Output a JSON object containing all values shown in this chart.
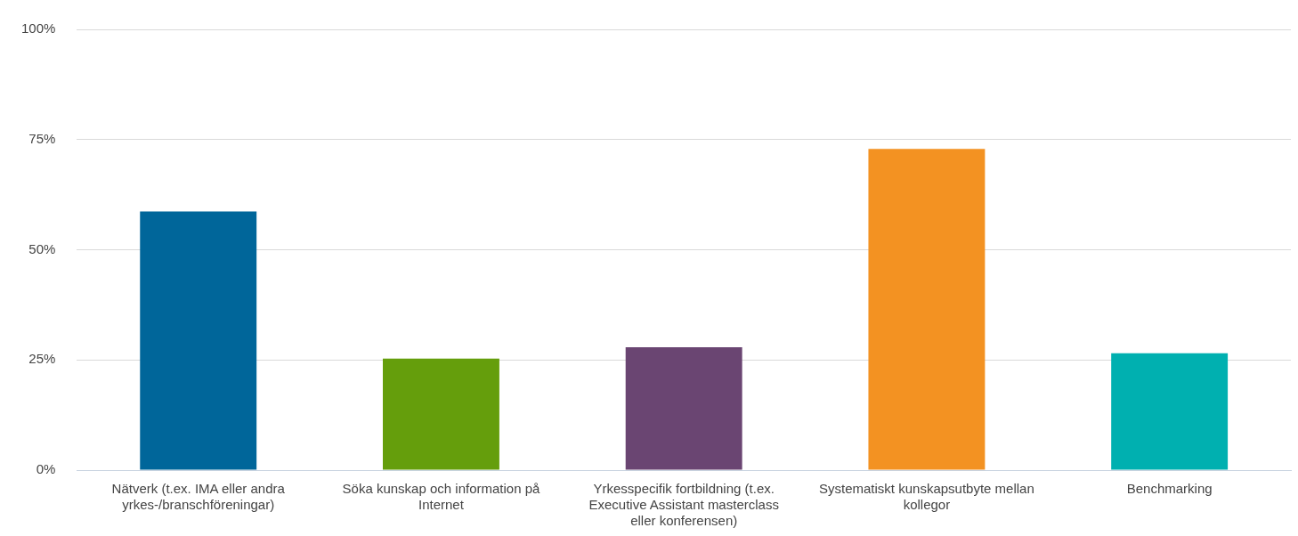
{
  "chart_data": {
    "type": "bar",
    "categories": [
      "Nätverk (t.ex. IMA eller andra yrkes-/branschföreningar)",
      "Söka kunskap och information på Internet",
      "Yrkesspecifik fortbildning (t.ex. Executive Assistant masterclass eller konferensen)",
      "Systematiskt kunskapsutbyte mellan kollegor",
      "Benchmarking"
    ],
    "values": [
      58.7,
      25.3,
      27.9,
      72.9,
      26.5
    ],
    "colors": [
      "#00669a",
      "#659e0c",
      "#6a4572",
      "#f39222",
      "#00b0b0"
    ],
    "ylim": [
      0,
      100
    ],
    "yticks": [
      {
        "value": 0,
        "label": "0%"
      },
      {
        "value": 25,
        "label": "25%"
      },
      {
        "value": 50,
        "label": "50%"
      },
      {
        "value": 75,
        "label": "75%"
      },
      {
        "value": 100,
        "label": "100%"
      }
    ],
    "grid": "y",
    "legend": false
  }
}
